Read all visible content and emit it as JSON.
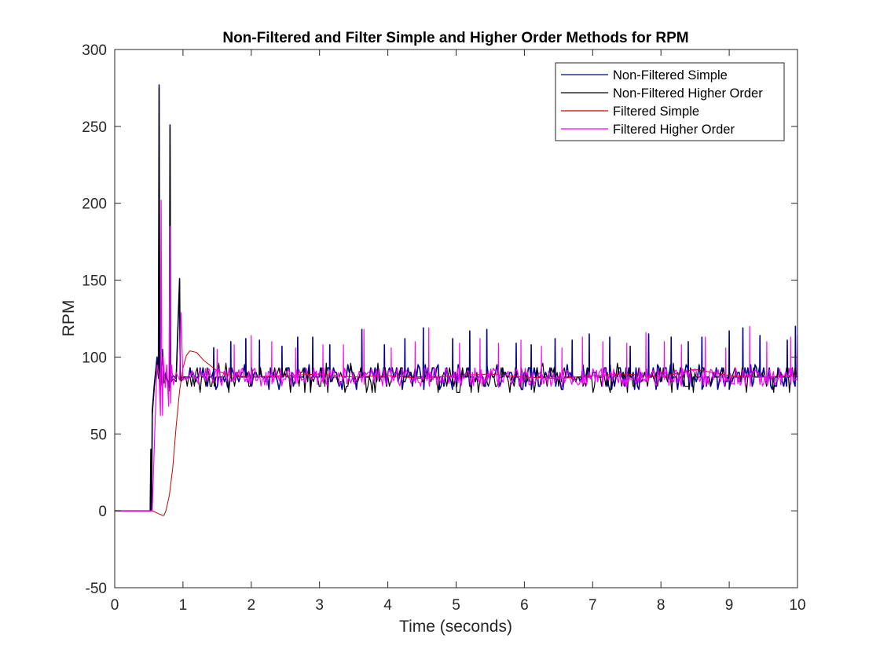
{
  "chart_data": {
    "type": "line",
    "title": "Non-Filtered and Filter Simple and Higher Order Methods for RPM",
    "xlabel": "Time (seconds)",
    "ylabel": "RPM",
    "xlim": [
      0,
      10
    ],
    "ylim": [
      -50,
      300
    ],
    "xticks": [
      0,
      1,
      2,
      3,
      4,
      5,
      6,
      7,
      8,
      9,
      10
    ],
    "yticks": [
      -50,
      0,
      50,
      100,
      150,
      200,
      250,
      300
    ],
    "xtick_labels": [
      "0",
      "1",
      "2",
      "3",
      "4",
      "5",
      "6",
      "7",
      "8",
      "9",
      "10"
    ],
    "ytick_labels": [
      "-50",
      "0",
      "50",
      "100",
      "150",
      "200",
      "250",
      "300"
    ],
    "grid": false,
    "legend_position": "top-right",
    "baseline_rpm": 87,
    "series": [
      {
        "name": "Non-Filtered Simple",
        "color": "#00008b",
        "x": [
          0,
          0.52,
          0.53,
          0.54,
          0.55,
          0.58,
          0.62,
          0.64,
          0.65,
          0.66,
          0.67,
          0.7,
          0.72,
          0.75,
          0.8,
          0.81,
          0.82,
          0.85,
          0.9,
          0.95,
          0.96,
          0.97,
          1.0,
          10
        ],
        "y": [
          0,
          0,
          40,
          0,
          65,
          82,
          100,
          88,
          277,
          92,
          80,
          105,
          85,
          90,
          80,
          251,
          85,
          88,
          86,
          151,
          88,
          86,
          87,
          87
        ],
        "spike_times": [
          1.45,
          1.7,
          1.92,
          2.12,
          2.45,
          2.68,
          2.9,
          3.15,
          3.62,
          3.95,
          4.25,
          4.52,
          4.95,
          5.2,
          5.45,
          5.88,
          6.1,
          6.45,
          6.7,
          6.95,
          7.25,
          7.55,
          7.82,
          8.15,
          8.4,
          8.6,
          9.0,
          9.2,
          9.45,
          9.85,
          9.97
        ],
        "spike_values": [
          106,
          110,
          112,
          111,
          107,
          113,
          113,
          108,
          118,
          108,
          112,
          119,
          112,
          117,
          118,
          109,
          108,
          112,
          111,
          115,
          113,
          107,
          115,
          113,
          110,
          113,
          117,
          119,
          114,
          111,
          120
        ]
      },
      {
        "name": "Non-Filtered Higher Order",
        "color": "#000000",
        "x": [
          0,
          0.52,
          0.53,
          0.54,
          0.55,
          0.58,
          0.62,
          0.64,
          0.65,
          0.66,
          0.67,
          0.7,
          0.72,
          0.75,
          0.8,
          0.81,
          0.82,
          0.85,
          0.9,
          0.95,
          0.96,
          0.97,
          1.0,
          10
        ],
        "y": [
          0,
          0,
          40,
          0,
          62,
          80,
          97,
          86,
          275,
          90,
          78,
          102,
          83,
          88,
          78,
          249,
          83,
          86,
          84,
          149,
          86,
          84,
          86,
          86
        ],
        "noise_low": 77,
        "noise_high": 96
      },
      {
        "name": "Filtered Simple",
        "color": "#cc0000",
        "x": [
          0,
          0.55,
          0.65,
          0.7,
          0.72,
          0.75,
          0.8,
          0.85,
          0.9,
          0.95,
          1.0,
          1.05,
          1.1,
          1.2,
          1.3,
          1.5,
          1.7,
          2.0,
          2.5,
          3.0,
          3.5,
          4.0,
          4.5,
          5.0,
          5.5,
          6.0,
          6.5,
          7.0,
          7.5,
          8.0,
          8.5,
          9.0,
          9.5,
          10.0
        ],
        "y": [
          0,
          0,
          -2,
          -3,
          -3,
          0,
          10,
          28,
          55,
          78,
          93,
          101,
          104,
          103,
          98,
          91,
          88,
          87,
          88,
          89,
          87,
          88,
          86,
          88,
          89,
          87,
          86,
          88,
          89,
          87,
          92,
          88,
          87,
          88
        ]
      },
      {
        "name": "Filtered Higher Order",
        "color": "#ff00ff",
        "x": [
          0,
          0.55,
          0.6,
          0.62,
          0.65,
          0.67,
          0.68,
          0.69,
          0.7,
          0.71,
          0.74,
          0.76,
          0.79,
          0.8,
          0.81,
          0.82,
          0.83,
          0.86,
          0.9,
          0.95,
          0.97,
          1.0,
          1.05,
          10
        ],
        "y": [
          0,
          0,
          70,
          95,
          88,
          62,
          202,
          90,
          62,
          100,
          80,
          95,
          68,
          110,
          185,
          70,
          95,
          82,
          90,
          85,
          129,
          85,
          87,
          87
        ],
        "spike_times": [
          1.5,
          1.75,
          2.0,
          2.3,
          2.65,
          3.05,
          3.35,
          3.65,
          4.05,
          4.4,
          4.6,
          5.05,
          5.35,
          5.62,
          5.95,
          6.25,
          6.55,
          6.85,
          7.15,
          7.5,
          7.78,
          8.05,
          8.3,
          8.65,
          8.95,
          9.3,
          9.55,
          9.9,
          10.0
        ],
        "spike_values": [
          105,
          108,
          114,
          110,
          106,
          108,
          108,
          118,
          106,
          110,
          119,
          109,
          112,
          109,
          111,
          107,
          106,
          113,
          110,
          109,
          116,
          110,
          108,
          113,
          106,
          120,
          110,
          113,
          117
        ]
      }
    ]
  }
}
